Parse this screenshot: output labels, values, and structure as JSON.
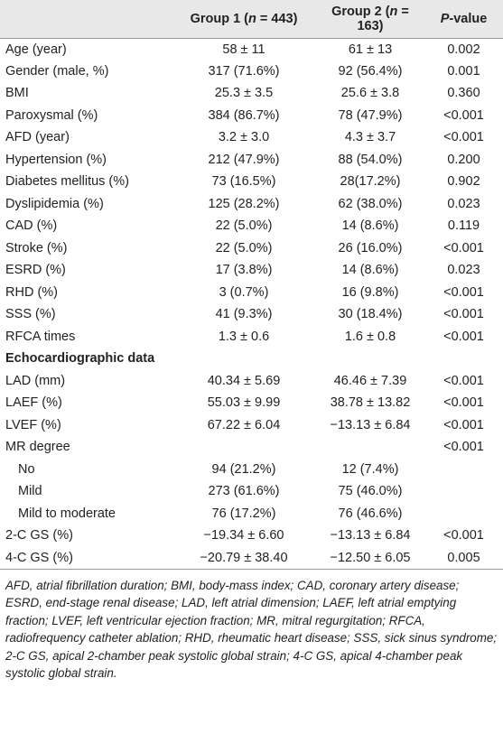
{
  "table": {
    "header": [
      [
        "Group 1 (",
        "n",
        " = 443)"
      ],
      [
        "Group 2 (",
        "n",
        " = 163)"
      ],
      [
        "P",
        "-value"
      ]
    ],
    "rows": [
      {
        "label": "Age (year)",
        "group1": "58 ± 11",
        "group2": "61 ± 13",
        "p": "0.002"
      },
      {
        "label": "Gender (male, %)",
        "group1": "317 (71.6%)",
        "group2": "92 (56.4%)",
        "p": "0.001"
      },
      {
        "label": "BMI",
        "group1": "25.3 ± 3.5",
        "group2": "25.6 ± 3.8",
        "p": "0.360"
      },
      {
        "label": "Paroxysmal (%)",
        "group1": "384 (86.7%)",
        "group2": "78 (47.9%)",
        "p": "<0.001"
      },
      {
        "label": "AFD (year)",
        "group1": "3.2 ± 3.0",
        "group2": "4.3 ± 3.7",
        "p": "<0.001"
      },
      {
        "label": "Hypertension (%)",
        "group1": "212 (47.9%)",
        "group2": "88 (54.0%)",
        "p": "0.200"
      },
      {
        "label": "Diabetes mellitus (%)",
        "group1": "73 (16.5%)",
        "group2": "28(17.2%)",
        "p": "0.902"
      },
      {
        "label": "Dyslipidemia (%)",
        "group1": "125 (28.2%)",
        "group2": "62 (38.0%)",
        "p": "0.023"
      },
      {
        "label": "CAD (%)",
        "group1": "22 (5.0%)",
        "group2": "14 (8.6%)",
        "p": "0.119"
      },
      {
        "label": "Stroke (%)",
        "group1": "22 (5.0%)",
        "group2": "26 (16.0%)",
        "p": "<0.001"
      },
      {
        "label": "ESRD (%)",
        "group1": "17 (3.8%)",
        "group2": "14 (8.6%)",
        "p": "0.023"
      },
      {
        "label": "RHD (%)",
        "group1": "3 (0.7%)",
        "group2": "16 (9.8%)",
        "p": "<0.001"
      },
      {
        "label": "SSS (%)",
        "group1": "41 (9.3%)",
        "group2": "30 (18.4%)",
        "p": "<0.001"
      },
      {
        "label": "RFCA times",
        "group1": "1.3 ± 0.6",
        "group2": "1.6 ± 0.8",
        "p": "<0.001"
      },
      {
        "section": "Echocardiographic data"
      },
      {
        "label": "LAD (mm)",
        "group1": "40.34 ± 5.69",
        "group2": "46.46 ± 7.39",
        "p": "<0.001"
      },
      {
        "label": "LAEF (%)",
        "group1": "55.03 ± 9.99",
        "group2": "38.78 ± 13.82",
        "p": "<0.001"
      },
      {
        "label": "LVEF (%)",
        "group1": "67.22 ± 6.04",
        "group2": "−13.13 ± 6.84",
        "p": "<0.001"
      },
      {
        "label": "MR degree",
        "p": "<0.001",
        "sub": [
          {
            "label": "No",
            "group1": "94 (21.2%)",
            "group2": "12 (7.4%)"
          },
          {
            "label": "Mild",
            "group1": "273 (61.6%)",
            "group2": "75 (46.0%)"
          },
          {
            "label": "Mild to moderate",
            "group1": "76 (17.2%)",
            "group2": "76 (46.6%)"
          }
        ]
      },
      {
        "label": "2-C GS (%)",
        "group1": "−19.34 ± 6.60",
        "group2": "−13.13 ± 6.84",
        "p": "<0.001"
      },
      {
        "label": "4-C GS (%)",
        "group1": "−20.79 ± 38.40",
        "group2": "−12.50 ± 6.05",
        "p": "0.005"
      }
    ]
  },
  "footnote": "AFD, atrial fibrillation duration; BMI, body-mass index; CAD, coronary artery disease; ESRD, end-stage renal disease; LAD, left atrial dimension; LAEF, left atrial emptying fraction; LVEF, left ventricular ejection fraction; MR, mitral regurgitation; RFCA, radiofrequency catheter ablation; RHD, rheumatic heart disease; SSS, sick sinus syndrome; 2-C GS, apical 2-chamber peak systolic global strain; 4-C GS, apical 4-chamber peak systolic global strain."
}
